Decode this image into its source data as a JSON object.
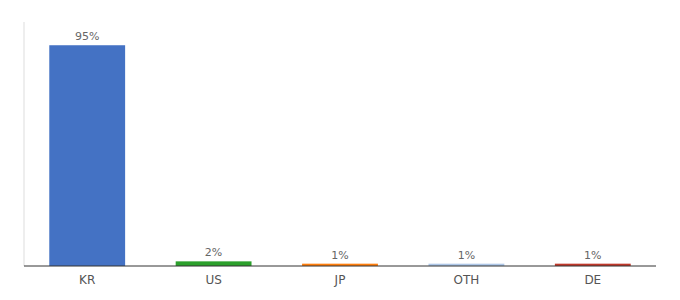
{
  "chart_data": {
    "type": "bar",
    "categories": [
      "KR",
      "US",
      "JP",
      "OTH",
      "DE"
    ],
    "values": [
      95,
      2,
      1,
      1,
      1
    ],
    "value_labels": [
      "95%",
      "2%",
      "1%",
      "1%",
      "1%"
    ],
    "colors": [
      "#4472c4",
      "#2ca02c",
      "#ff7f0e",
      "#aec7e8",
      "#c0392b"
    ],
    "ylim": [
      0,
      105
    ],
    "data_labels": true,
    "tick_labels": "x",
    "grid": false
  }
}
